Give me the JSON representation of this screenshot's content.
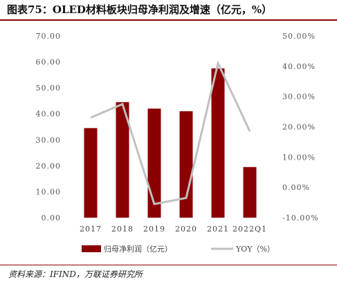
{
  "title": "图表75：OLED材料板块归母净利润及增速（亿元，%）",
  "source": "资料来源：IFIND，万联证券研究所",
  "colors": {
    "bar": "#8b0000",
    "line": "#c0c0c0",
    "rule": "#8b0000"
  },
  "chart_data": {
    "type": "bar",
    "categories": [
      "2017",
      "2018",
      "2019",
      "2020",
      "2021",
      "2022Q1"
    ],
    "series": [
      {
        "name": "归母净利润（亿元）",
        "type": "bar",
        "axis": "left",
        "values": [
          34.5,
          44.5,
          42.0,
          41.0,
          57.5,
          19.5
        ]
      },
      {
        "name": "YOY（%）",
        "type": "line",
        "axis": "right",
        "values": [
          23.0,
          27.5,
          -5.5,
          -3.5,
          41.0,
          18.5
        ]
      }
    ],
    "left_axis": {
      "ylim": [
        0,
        70
      ],
      "step": 10,
      "tick_labels": [
        "0.00",
        "10.00",
        "20.00",
        "30.00",
        "40.00",
        "50.00",
        "60.00",
        "70.00"
      ]
    },
    "right_axis": {
      "ylim": [
        -10,
        50
      ],
      "step": 10,
      "tick_labels": [
        "-10.00%",
        "0.00%",
        "10.00%",
        "20.00%",
        "30.00%",
        "40.00%",
        "50.00%"
      ]
    },
    "legend_position": "bottom",
    "grid": false
  }
}
